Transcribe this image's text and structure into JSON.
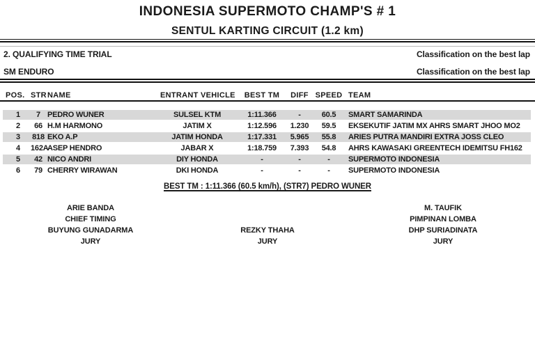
{
  "page": {
    "title": "INDONESIA SUPERMOTO CHAMP'S # 1",
    "subtitle": "SENTUL KARTING CIRCUIT (1.2 km)"
  },
  "session": {
    "heading": "2. QUALIFYING TIME TRIAL",
    "class_name": "SM ENDURO",
    "note_line1": "Classification on the best lap",
    "note_line2": "Classification on the best lap"
  },
  "table": {
    "columns": {
      "pos": "POS.",
      "str": "STR",
      "name": "NAME",
      "entrant": "ENTRANT VEHICLE",
      "best": "BEST TM",
      "diff": "DIFF",
      "speed": "SPEED",
      "team": "TEAM"
    },
    "rows": [
      {
        "pos": "1",
        "str": "7",
        "name": "PEDRO WUNER",
        "entrant": "SULSEL KTM",
        "best": "1:11.366",
        "diff": "-",
        "speed": "60.5",
        "team": "SMART SAMARINDA"
      },
      {
        "pos": "2",
        "str": "66",
        "name": "H.M HARMONO",
        "entrant": "JATIM X",
        "best": "1:12.596",
        "diff": "1.230",
        "speed": "59.5",
        "team": "EKSEKUTIF JATIM MX AHRS SMART JHOO MO2"
      },
      {
        "pos": "3",
        "str": "818",
        "name": "EKO A.P",
        "entrant": "JATIM HONDA",
        "best": "1:17.331",
        "diff": "5.965",
        "speed": "55.8",
        "team": "ARIES PUTRA MANDIRI EXTRA JOSS CLEO"
      },
      {
        "pos": "4",
        "str": "162A",
        "name": "ASEP HENDRO",
        "entrant": "JABAR X",
        "best": "1:18.759",
        "diff": "7.393",
        "speed": "54.8",
        "team": "AHRS KAWASAKI GREENTECH IDEMITSU FH162"
      },
      {
        "pos": "5",
        "str": "42",
        "name": "NICO ANDRI",
        "entrant": "DIY HONDA",
        "best": "-",
        "diff": "-",
        "speed": "-",
        "team": "SUPERMOTO INDONESIA"
      },
      {
        "pos": "6",
        "str": "79",
        "name": "CHERRY WIRAWAN",
        "entrant": "DKI HONDA",
        "best": "-",
        "diff": "-",
        "speed": "-",
        "team": "SUPERMOTO INDONESIA"
      }
    ]
  },
  "best_lap_summary": "BEST TM : 1:11.366 (60.5 km/h), (STR7) PEDRO WUNER",
  "officials": {
    "left": {
      "l1": "ARIE BANDA",
      "l2": "CHIEF TIMING",
      "l3": "BUYUNG GUNADARMA",
      "l4": "JURY"
    },
    "center": {
      "l1": "",
      "l2": "",
      "l3": "REZKY THAHA",
      "l4": "JURY"
    },
    "right": {
      "l1": "M. TAUFIK",
      "l2": "PIMPINAN LOMBA",
      "l3": "DHP SURIADINATA",
      "l4": "JURY"
    }
  },
  "colors": {
    "stripe": "#d8d8d8",
    "ink": "#1a1a1a",
    "rule": "#111111"
  }
}
